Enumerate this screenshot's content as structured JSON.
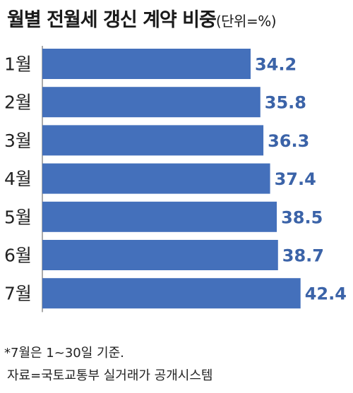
{
  "chart_data": {
    "type": "bar",
    "orientation": "horizontal",
    "title": "월별 전월세 갱신 계약 비중",
    "unit": "(단위=%)",
    "categories": [
      "1월",
      "2월",
      "3월",
      "4월",
      "5월",
      "6월",
      "7월"
    ],
    "values": [
      34.2,
      35.8,
      36.3,
      37.4,
      38.5,
      38.7,
      42.4
    ],
    "value_labels": [
      "34.2",
      "35.8",
      "36.3",
      "37.4",
      "38.5",
      "38.7",
      "42.4"
    ],
    "xlim": [
      0,
      48
    ],
    "grid": false,
    "bar_color": "#4470bb",
    "label_color": "#3b63a8",
    "notes": [
      "*7월은 1~30일 기준.",
      "자료=국토교통부 실거래가 공개시스템"
    ]
  }
}
